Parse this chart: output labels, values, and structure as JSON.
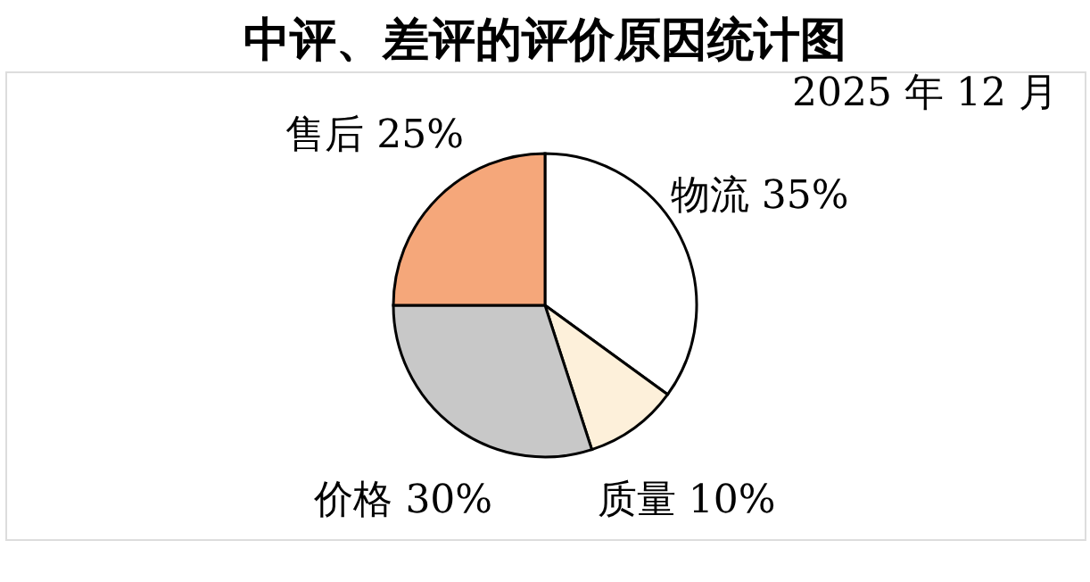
{
  "chart_data": {
    "type": "pie",
    "title": "中评、差评的评价原因统计图",
    "subtitle": "2025 年 12 月",
    "categories": [
      "物流",
      "质量",
      "价格",
      "售后"
    ],
    "values": [
      35,
      10,
      30,
      25
    ],
    "value_labels": [
      "35%",
      "10%",
      "30%",
      "25%"
    ],
    "colors": [
      "#ffffff",
      "#fdf0da",
      "#c8c8c8",
      "#f5a77a"
    ],
    "legend": false
  }
}
